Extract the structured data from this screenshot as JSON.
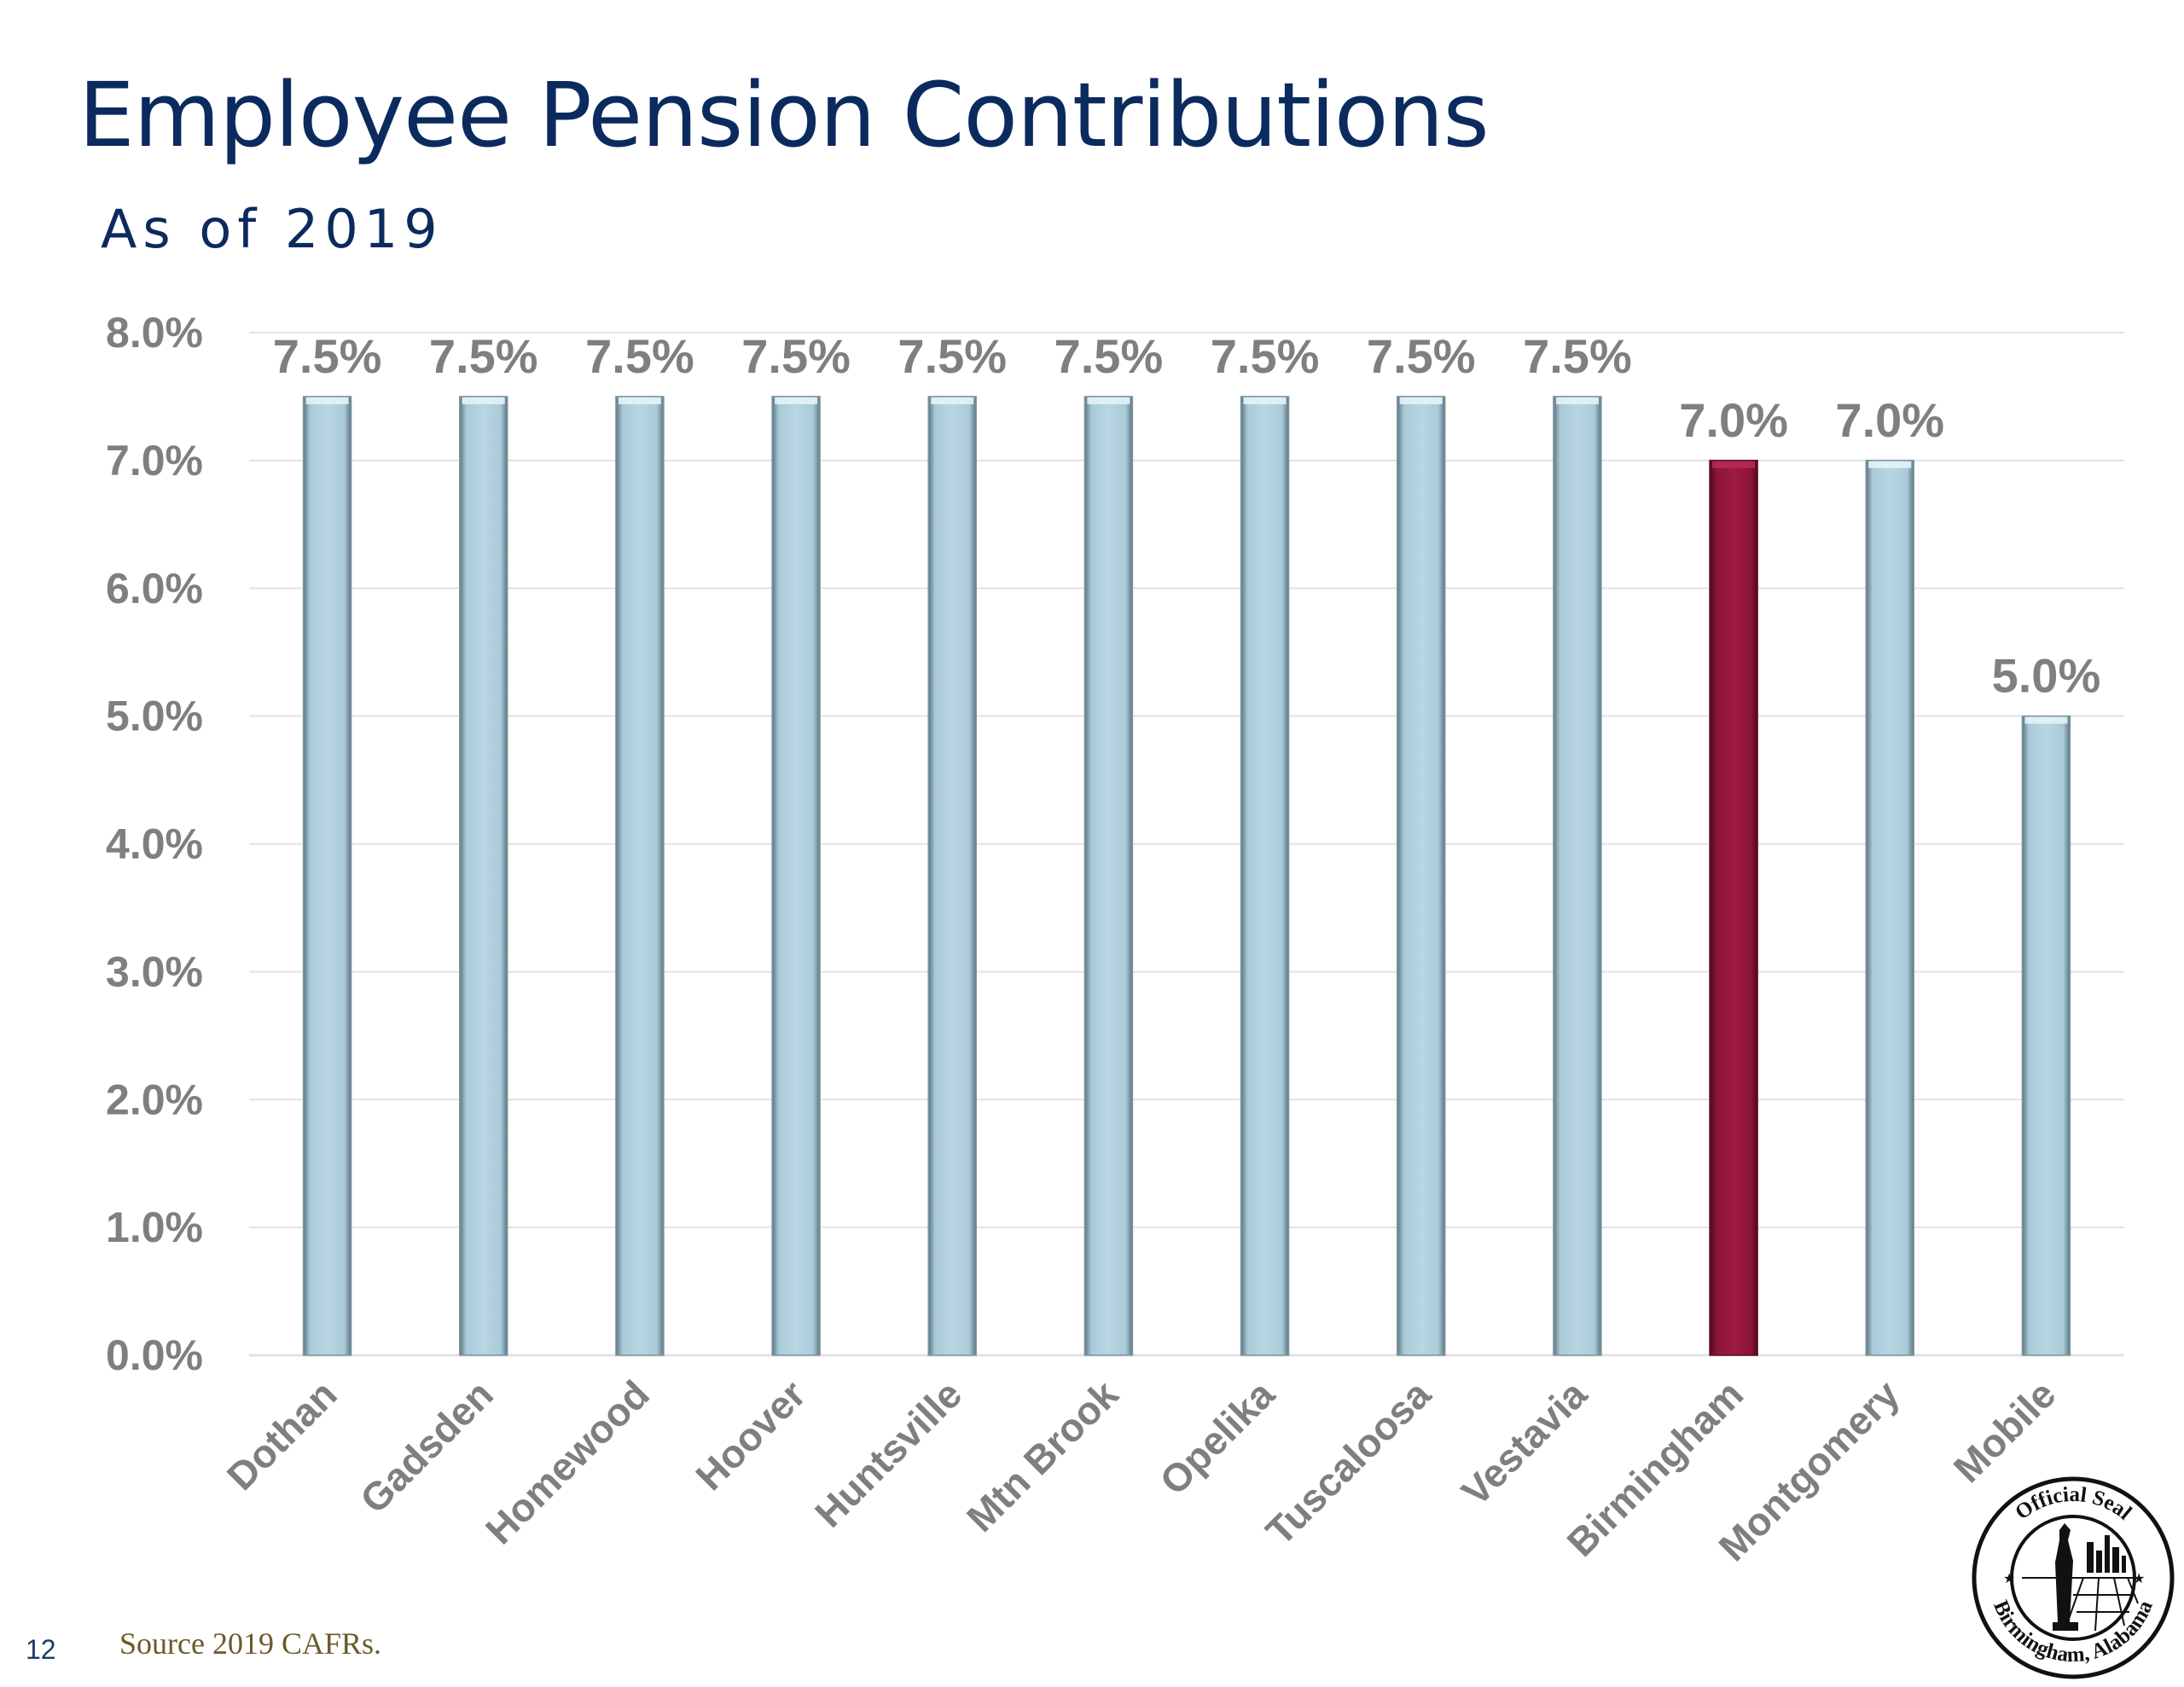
{
  "slide": {
    "title": "Employee Pension Contributions",
    "subtitle": "As of 2019",
    "page_number": "12",
    "source": "Source 2019 CAFRs."
  },
  "seal": {
    "text_top": "Official Seal",
    "text_bottom": "Birmingham, Alabama",
    "icon": "official-seal-icon"
  },
  "colors": {
    "bar_default": "#a9cad8",
    "bar_highlight": "#8c1438",
    "label": "#7f7f7f",
    "gridline": "#e3e3e3",
    "title": "#0b2a5e"
  },
  "chart_data": {
    "type": "bar",
    "title": "",
    "xlabel": "",
    "ylabel": "",
    "categories": [
      "Dothan",
      "Gadsden",
      "Homewood",
      "Hoover",
      "Huntsville",
      "Mtn Brook",
      "Opelika",
      "Tuscaloosa",
      "Vestavia",
      "Birmingham",
      "Montgomery",
      "Mobile"
    ],
    "values": [
      7.5,
      7.5,
      7.5,
      7.5,
      7.5,
      7.5,
      7.5,
      7.5,
      7.5,
      7.0,
      7.0,
      5.0
    ],
    "data_labels": [
      "7.5%",
      "7.5%",
      "7.5%",
      "7.5%",
      "7.5%",
      "7.5%",
      "7.5%",
      "7.5%",
      "7.5%",
      "7.0%",
      "7.0%",
      "5.0%"
    ],
    "highlight_category": "Birmingham",
    "y_ticks": [
      0,
      1,
      2,
      3,
      4,
      5,
      6,
      7,
      8
    ],
    "y_tick_labels": [
      "0.0%",
      "1.0%",
      "2.0%",
      "3.0%",
      "4.0%",
      "5.0%",
      "6.0%",
      "7.0%",
      "8.0%"
    ],
    "ylim": [
      0,
      8
    ],
    "grid": true,
    "legend": "none"
  }
}
